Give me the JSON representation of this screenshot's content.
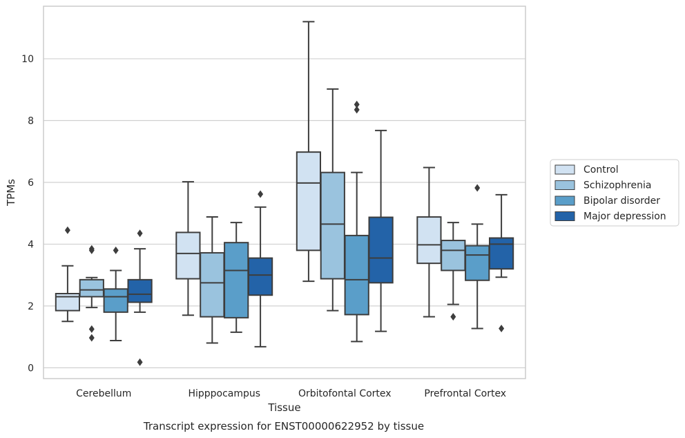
{
  "chart_data": {
    "type": "box",
    "caption": "Transcript expression for ENST00000622952 by tissue",
    "xlabel": "Tissue",
    "ylabel": "TPMs",
    "ylim": [
      -0.35,
      11.7
    ],
    "yticks": [
      0,
      2,
      4,
      6,
      8,
      10
    ],
    "grid": "horizontal",
    "legend_position": "right",
    "categories": [
      "Cerebellum",
      "Hipppocampus",
      "Orbitofontal Cortex",
      "Prefrontal Cortex"
    ],
    "series": [
      {
        "name": "Control",
        "color": "#d1e2f2",
        "boxes": [
          {
            "whislo": 1.5,
            "q1": 1.85,
            "med": 2.3,
            "q3": 2.4,
            "whishi": 3.3,
            "fliers": [
              4.45
            ]
          },
          {
            "whislo": 1.7,
            "q1": 2.88,
            "med": 3.7,
            "q3": 4.38,
            "whishi": 6.02,
            "fliers": []
          },
          {
            "whislo": 2.8,
            "q1": 3.8,
            "med": 5.98,
            "q3": 6.98,
            "whishi": 11.2,
            "fliers": []
          },
          {
            "whislo": 1.65,
            "q1": 3.38,
            "med": 3.98,
            "q3": 4.88,
            "whishi": 6.48,
            "fliers": []
          }
        ]
      },
      {
        "name": "Schizophrenia",
        "color": "#9ac3de",
        "boxes": [
          {
            "whislo": 1.95,
            "q1": 2.3,
            "med": 2.52,
            "q3": 2.85,
            "whishi": 2.92,
            "fliers": [
              3.8,
              3.85,
              1.25,
              0.97
            ]
          },
          {
            "whislo": 0.8,
            "q1": 1.65,
            "med": 2.75,
            "q3": 3.72,
            "whishi": 4.88,
            "fliers": []
          },
          {
            "whislo": 1.85,
            "q1": 2.88,
            "med": 4.65,
            "q3": 6.32,
            "whishi": 9.02,
            "fliers": []
          },
          {
            "whislo": 2.05,
            "q1": 3.15,
            "med": 3.8,
            "q3": 4.12,
            "whishi": 4.7,
            "fliers": [
              1.65
            ]
          }
        ]
      },
      {
        "name": "Bipolar disorder",
        "color": "#5a9ec9",
        "boxes": [
          {
            "whislo": 0.88,
            "q1": 1.8,
            "med": 2.3,
            "q3": 2.55,
            "whishi": 3.15,
            "fliers": [
              3.8
            ]
          },
          {
            "whislo": 1.15,
            "q1": 1.62,
            "med": 3.15,
            "q3": 4.05,
            "whishi": 4.7,
            "fliers": []
          },
          {
            "whislo": 0.85,
            "q1": 1.72,
            "med": 2.85,
            "q3": 4.28,
            "whishi": 6.32,
            "fliers": [
              8.35,
              8.52
            ]
          },
          {
            "whislo": 1.27,
            "q1": 2.83,
            "med": 3.65,
            "q3": 3.95,
            "whishi": 4.65,
            "fliers": [
              5.82
            ]
          }
        ]
      },
      {
        "name": "Major depression",
        "color": "#2363a8",
        "boxes": [
          {
            "whislo": 1.8,
            "q1": 2.12,
            "med": 2.38,
            "q3": 2.85,
            "whishi": 3.85,
            "fliers": [
              4.35,
              0.18
            ]
          },
          {
            "whislo": 0.68,
            "q1": 2.35,
            "med": 3.0,
            "q3": 3.55,
            "whishi": 5.2,
            "fliers": [
              5.62
            ]
          },
          {
            "whislo": 1.18,
            "q1": 2.75,
            "med": 3.55,
            "q3": 4.87,
            "whishi": 7.68,
            "fliers": []
          },
          {
            "whislo": 2.93,
            "q1": 3.2,
            "med": 4.0,
            "q3": 4.2,
            "whishi": 5.6,
            "fliers": [
              1.27
            ]
          }
        ]
      }
    ]
  }
}
